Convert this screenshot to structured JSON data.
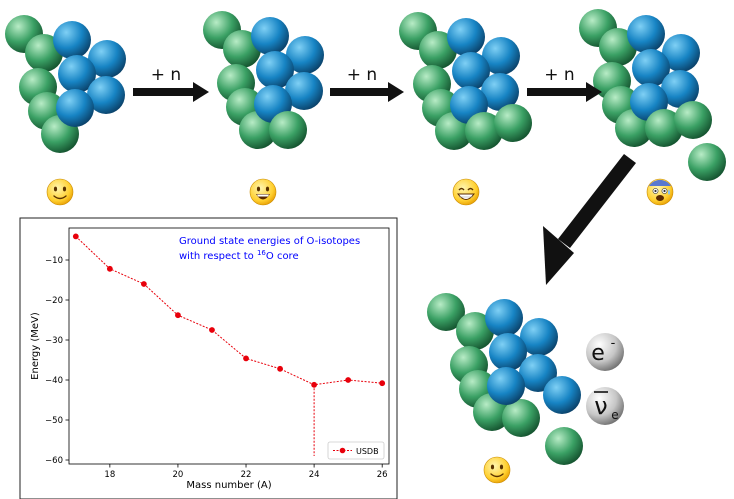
{
  "steps": [
    {
      "label": "+ n"
    },
    {
      "label": "+ n"
    },
    {
      "label": "+ n"
    }
  ],
  "emojis": [
    "slightly-smiling-face",
    "grinning-face",
    "beaming-face",
    "anxious-face",
    "slightly-smiling-face"
  ],
  "particles": {
    "electron": {
      "symbol": "e",
      "sup": "-"
    },
    "antineutrino": {
      "symbol": "ν",
      "sub": "e"
    }
  },
  "colors": {
    "proton": "#1a88c8",
    "neutron": "#3fa86a",
    "arrow": "#111111",
    "series": "#e8000b",
    "annotation": "#0000ff"
  },
  "chart_data": {
    "type": "line",
    "annotation_line1": "Ground state energies of O-isotopes",
    "annotation_line2_pre": "with respect to ",
    "annotation_line2_sup": "16",
    "annotation_line2_post": "O core",
    "xlabel": "Mass number (A)",
    "ylabel": "Energy (MeV)",
    "xlim": [
      16.8,
      26.2
    ],
    "ylim": [
      -61,
      -2
    ],
    "xticks": [
      18,
      20,
      22,
      24,
      26
    ],
    "yticks": [
      -10,
      -20,
      -30,
      -40,
      -50,
      -60
    ],
    "grid": false,
    "legend_position": "bottom-right",
    "series": [
      {
        "name": "USDB",
        "x": [
          17,
          18,
          19,
          20,
          21,
          22,
          23,
          24,
          25,
          26
        ],
        "y": [
          -4.1,
          -12.2,
          -16.0,
          -23.8,
          -27.5,
          -34.6,
          -37.2,
          -41.2,
          -40.0,
          -40.8
        ]
      }
    ],
    "dropline": {
      "x": 24,
      "y_from": -41.2,
      "y_to": -59
    }
  }
}
